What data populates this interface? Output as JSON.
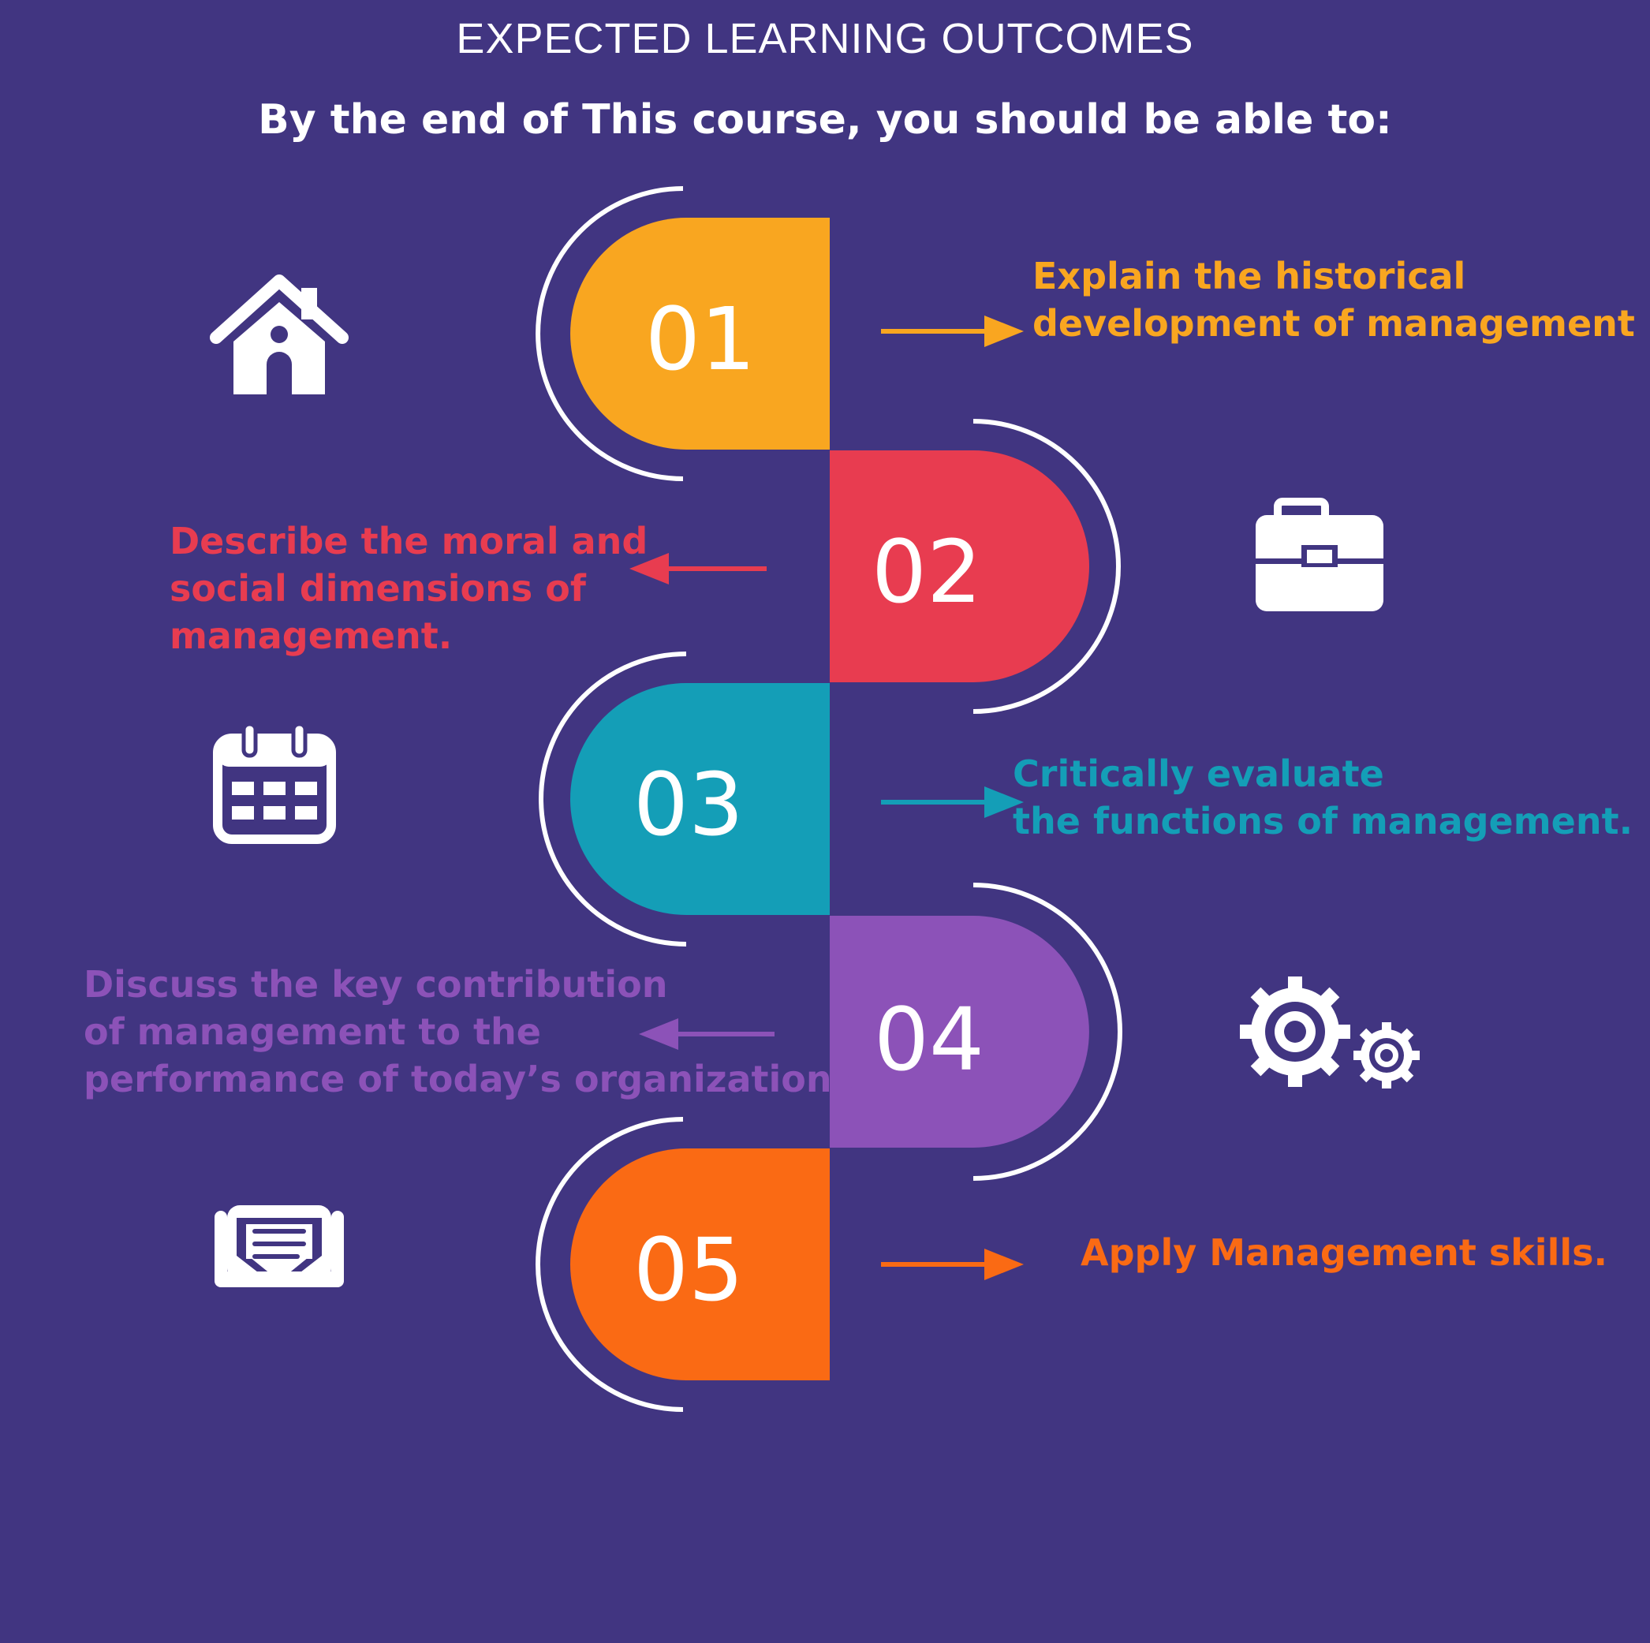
{
  "header": {
    "title": "EXPECTED LEARNING OUTCOMES",
    "subtitle": "By the end of This course, you should be able to:"
  },
  "steps": [
    {
      "number": "01",
      "color": "#F9A620",
      "icon": "house-icon",
      "text": "Explain the historical\ndevelopment of management"
    },
    {
      "number": "02",
      "color": "#E83C50",
      "icon": "briefcase-icon",
      "text": "Describe the moral and\nsocial dimensions of\nmanagement."
    },
    {
      "number": "03",
      "color": "#149EB7",
      "icon": "calendar-icon",
      "text": "Critically evaluate\n the functions of management."
    },
    {
      "number": "04",
      "color": "#8C52B8",
      "icon": "gears-icon",
      "text": "Discuss the key contribution\nof management to the\nperformance of today’s organizations"
    },
    {
      "number": "05",
      "color": "#FA6A14",
      "icon": "envelope-icon",
      "text": "Apply Management skills."
    }
  ],
  "colors": {
    "background": "#413581",
    "icon": "#FFFFFF",
    "ring": "#FFFFFF"
  }
}
